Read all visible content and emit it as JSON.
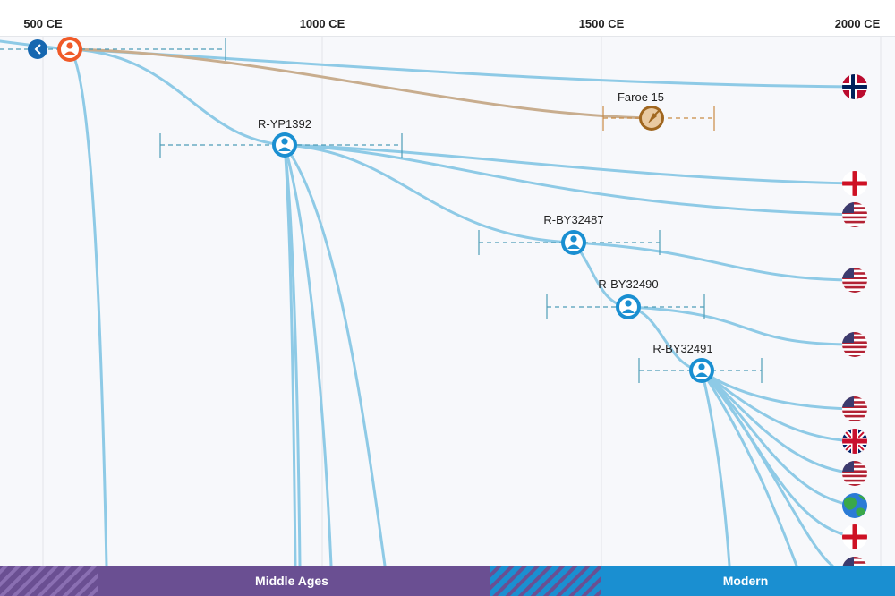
{
  "timeline": {
    "ticks": [
      "500 CE",
      "1000 CE",
      "1500 CE",
      "2000 CE"
    ]
  },
  "back_button": {
    "icon": "chevron-left-icon"
  },
  "nodes": {
    "root": {
      "label": "",
      "icon": "person-icon",
      "color": "#f05a28"
    },
    "yp1392": {
      "label": "R-YP1392",
      "icon": "person-icon"
    },
    "by32487": {
      "label": "R-BY32487",
      "icon": "person-icon"
    },
    "by32490": {
      "label": "R-BY32490",
      "icon": "person-icon"
    },
    "by32491": {
      "label": "R-BY32491",
      "icon": "person-icon"
    },
    "faroe": {
      "label": "Faroe 15",
      "icon": "trowel-icon"
    }
  },
  "flags": [
    {
      "country": "Norway",
      "icon": "norway-flag-icon"
    },
    {
      "country": "England",
      "icon": "england-flag-icon"
    },
    {
      "country": "United States",
      "icon": "usa-flag-icon"
    },
    {
      "country": "United States",
      "icon": "usa-flag-icon"
    },
    {
      "country": "United States",
      "icon": "usa-flag-icon"
    },
    {
      "country": "United States",
      "icon": "usa-flag-icon"
    },
    {
      "country": "United Kingdom",
      "icon": "uk-flag-icon"
    },
    {
      "country": "United States",
      "icon": "usa-flag-icon"
    },
    {
      "country": "Unknown",
      "icon": "globe-icon"
    },
    {
      "country": "England",
      "icon": "england-flag-icon"
    },
    {
      "country": "United States",
      "icon": "usa-flag-icon"
    }
  ],
  "eras": {
    "middle_ages": "Middle Ages",
    "modern": "Modern"
  },
  "colors": {
    "branch": "#8ecae6",
    "ancient_branch": "#c8ad8e",
    "node": "#1a8fd1",
    "era_purple": "#6a4f92",
    "era_blue": "#1a8fd1",
    "back_button": "#1667b0"
  }
}
